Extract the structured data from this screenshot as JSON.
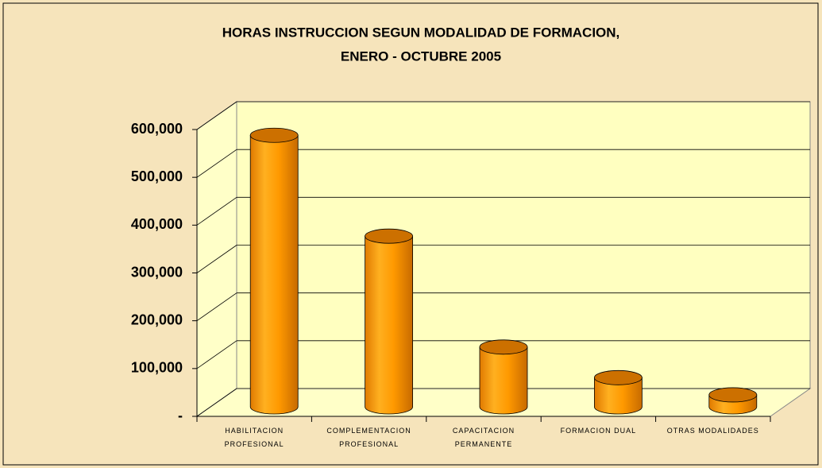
{
  "chart_data": {
    "type": "bar",
    "title_lines": [
      "HORAS INSTRUCCION SEGUN MODALIDAD DE FORMACION,",
      "ENERO - OCTUBRE 2005"
    ],
    "categories": [
      "HABILITACION PROFESIONAL",
      "COMPLEMENTACION PROFESIONAL",
      "CAPACITACION PERMANENTE",
      "FORMACION DUAL",
      "OTRAS MODALIDADES"
    ],
    "values": [
      568000,
      357000,
      125000,
      61000,
      25000
    ],
    "color": "#ff9900",
    "ylim": [
      0,
      600000
    ],
    "yticks": [
      {
        "value": 0,
        "label": "-"
      },
      {
        "value": 100000,
        "label": "100,000"
      },
      {
        "value": 200000,
        "label": "200,000"
      },
      {
        "value": 300000,
        "label": "300,000"
      },
      {
        "value": 400000,
        "label": "400,000"
      },
      {
        "value": 500000,
        "label": "500,000"
      },
      {
        "value": 600000,
        "label": "600,000"
      }
    ],
    "grid": true
  }
}
